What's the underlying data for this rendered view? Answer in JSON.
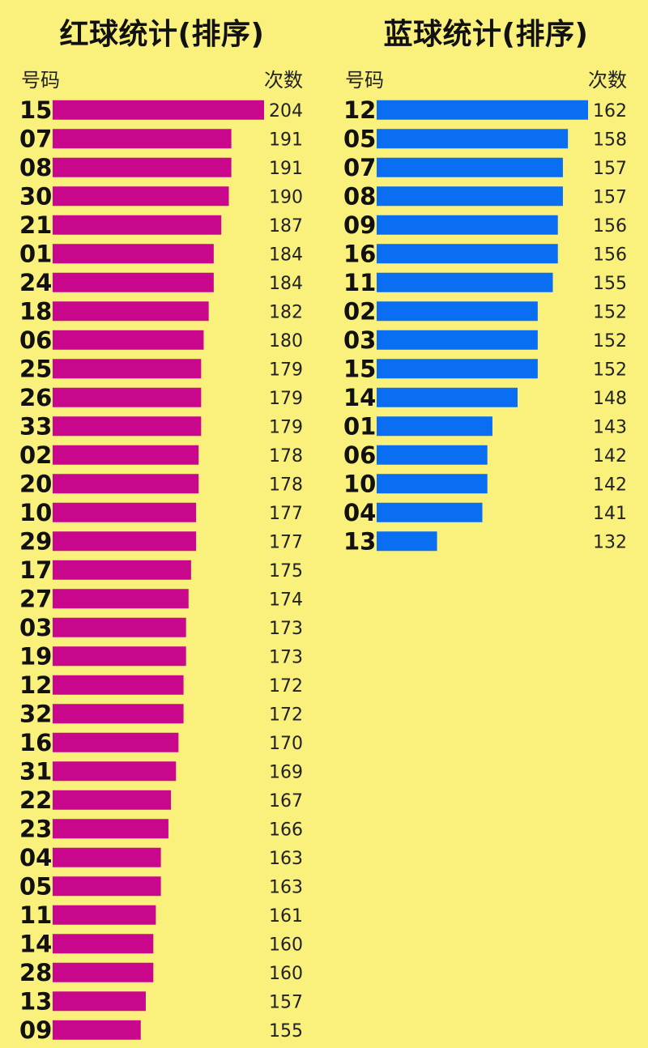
{
  "colors": {
    "background": "#FAF07C",
    "red_bar": "#C8078C",
    "blue_bar": "#0A6EF2"
  },
  "chart_data": [
    {
      "type": "bar",
      "orientation": "horizontal",
      "title": "红球统计(排序)",
      "xlabel": "次数",
      "ylabel": "号码",
      "categories": [
        "15",
        "07",
        "08",
        "30",
        "21",
        "01",
        "24",
        "18",
        "06",
        "25",
        "26",
        "33",
        "02",
        "20",
        "10",
        "29",
        "17",
        "27",
        "03",
        "19",
        "12",
        "32",
        "16",
        "31",
        "22",
        "23",
        "04",
        "05",
        "11",
        "14",
        "28",
        "13",
        "09"
      ],
      "values": [
        204,
        191,
        191,
        190,
        187,
        184,
        184,
        182,
        180,
        179,
        179,
        179,
        178,
        178,
        177,
        177,
        175,
        174,
        173,
        173,
        172,
        172,
        170,
        169,
        167,
        166,
        163,
        163,
        161,
        160,
        160,
        157,
        155
      ],
      "color": "#C8078C"
    },
    {
      "type": "bar",
      "orientation": "horizontal",
      "title": "蓝球统计(排序)",
      "xlabel": "次数",
      "ylabel": "号码",
      "categories": [
        "12",
        "05",
        "07",
        "08",
        "09",
        "16",
        "11",
        "02",
        "03",
        "15",
        "14",
        "01",
        "06",
        "10",
        "04",
        "13"
      ],
      "values": [
        162,
        158,
        157,
        157,
        156,
        156,
        155,
        152,
        152,
        152,
        148,
        143,
        142,
        142,
        141,
        132
      ],
      "color": "#0A6EF2"
    }
  ]
}
